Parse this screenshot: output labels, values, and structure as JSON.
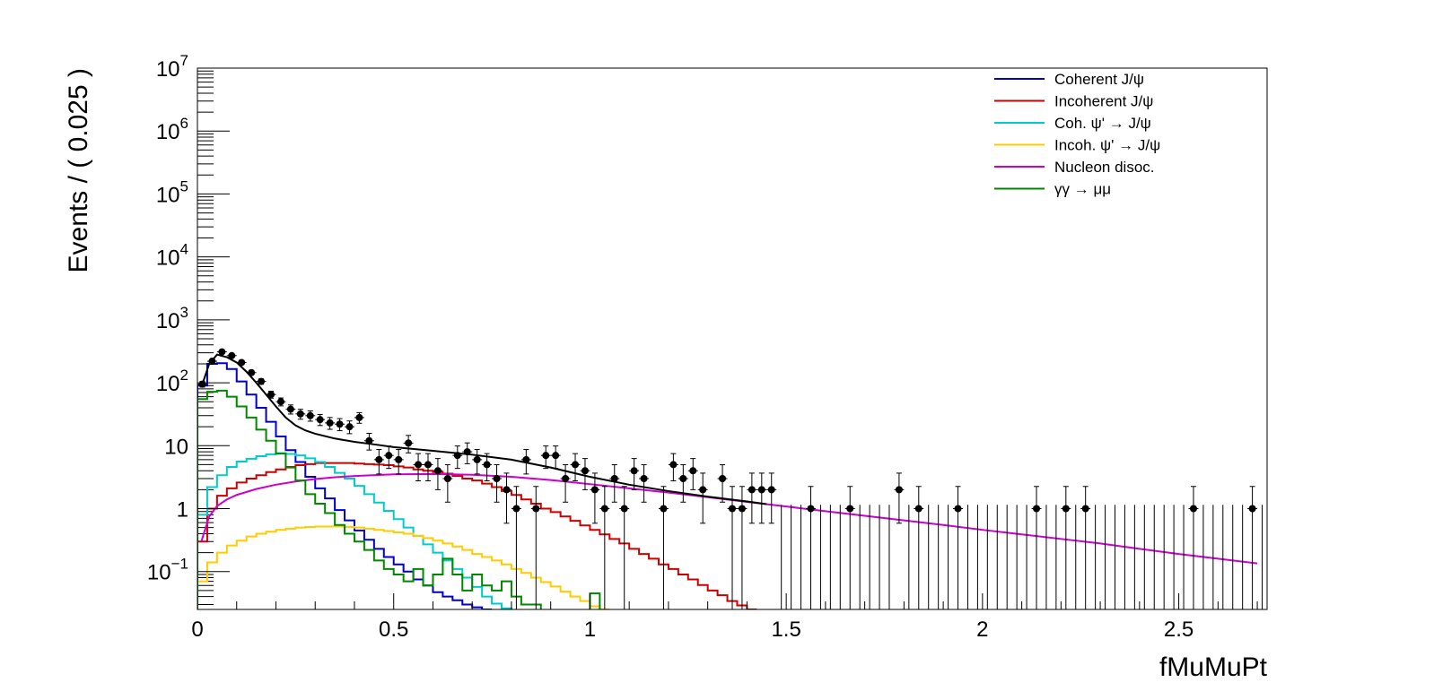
{
  "chart_data": {
    "type": "histogram",
    "xlabel": "fMuMuPt",
    "ylabel": "Events / ( 0.025 )",
    "x_range": [
      0,
      2.725
    ],
    "y_range": [
      0.025,
      10000000
    ],
    "y_scale": "log",
    "grid": false,
    "legend_position": "top-right",
    "x_ticks": [
      {
        "v": 0,
        "label": "0"
      },
      {
        "v": 0.5,
        "label": "0.5"
      },
      {
        "v": 1,
        "label": "1"
      },
      {
        "v": 1.5,
        "label": "1.5"
      },
      {
        "v": 2,
        "label": "2"
      },
      {
        "v": 2.5,
        "label": "2.5"
      }
    ],
    "y_ticks": [
      {
        "v": 0.1,
        "base": "10",
        "exp": "−1"
      },
      {
        "v": 1,
        "label": "1"
      },
      {
        "v": 10,
        "label": "10"
      },
      {
        "v": 100,
        "base": "10",
        "exp": "2"
      },
      {
        "v": 1000,
        "base": "10",
        "exp": "3"
      },
      {
        "v": 10000,
        "base": "10",
        "exp": "4"
      },
      {
        "v": 100000,
        "base": "10",
        "exp": "5"
      },
      {
        "v": 1000000,
        "base": "10",
        "exp": "6"
      },
      {
        "v": 10000000,
        "base": "10",
        "exp": "7"
      }
    ],
    "bin_width": 0.025,
    "data_points": [
      [
        0.0125,
        95
      ],
      [
        0.0375,
        220
      ],
      [
        0.0625,
        310
      ],
      [
        0.0875,
        270
      ],
      [
        0.1125,
        210
      ],
      [
        0.1375,
        145
      ],
      [
        0.1625,
        105
      ],
      [
        0.1875,
        65
      ],
      [
        0.2125,
        50
      ],
      [
        0.2375,
        38
      ],
      [
        0.2625,
        32
      ],
      [
        0.2875,
        30
      ],
      [
        0.3125,
        26
      ],
      [
        0.3375,
        23
      ],
      [
        0.3625,
        22
      ],
      [
        0.3875,
        20
      ],
      [
        0.4125,
        28
      ],
      [
        0.4375,
        12
      ],
      [
        0.4625,
        6
      ],
      [
        0.4875,
        7
      ],
      [
        0.5125,
        6
      ],
      [
        0.5375,
        11
      ],
      [
        0.5625,
        5
      ],
      [
        0.5875,
        5
      ],
      [
        0.6125,
        4
      ],
      [
        0.6375,
        3
      ],
      [
        0.6625,
        7
      ],
      [
        0.6875,
        8
      ],
      [
        0.7125,
        6
      ],
      [
        0.7375,
        5
      ],
      [
        0.7625,
        3
      ],
      [
        0.7875,
        2
      ],
      [
        0.8125,
        1
      ],
      [
        0.8375,
        6
      ],
      [
        0.8625,
        1
      ],
      [
        0.8875,
        7
      ],
      [
        0.9125,
        7
      ],
      [
        0.9375,
        3
      ],
      [
        0.9625,
        5
      ],
      [
        0.9875,
        4
      ],
      [
        1.0125,
        2
      ],
      [
        1.0375,
        1
      ],
      [
        1.0625,
        3
      ],
      [
        1.0875,
        1
      ],
      [
        1.1125,
        4
      ],
      [
        1.1375,
        3
      ],
      [
        1.1875,
        1
      ],
      [
        1.2125,
        5
      ],
      [
        1.2375,
        3
      ],
      [
        1.2625,
        4
      ],
      [
        1.2875,
        2
      ],
      [
        1.3375,
        3
      ],
      [
        1.3625,
        1
      ],
      [
        1.3875,
        1
      ],
      [
        1.4125,
        2
      ],
      [
        1.4375,
        2
      ],
      [
        1.4625,
        2
      ],
      [
        1.5625,
        1
      ],
      [
        1.6625,
        1
      ],
      [
        1.7875,
        2
      ],
      [
        1.8375,
        1
      ],
      [
        1.9375,
        1
      ],
      [
        2.1375,
        1
      ],
      [
        2.2125,
        1
      ],
      [
        2.2625,
        1
      ],
      [
        2.5375,
        1
      ],
      [
        2.6875,
        1
      ]
    ],
    "empty_bin_error_upper": 1.15,
    "series": [
      {
        "name": "Coherent J/ψ",
        "color": "#0000cc",
        "style": "step",
        "values": [
          90,
          200,
          205,
          165,
          105,
          65,
          40,
          24,
          14,
          8.5,
          5.5,
          3.2,
          2.1,
          1.45,
          0.95,
          0.65,
          0.45,
          0.32,
          0.23,
          0.17,
          0.13,
          0.1,
          0.075,
          0.06,
          0.047,
          0.04,
          0.035,
          0.03,
          0.027,
          0.025
        ]
      },
      {
        "name": "Incoherent J/ψ",
        "color": "#cc0000",
        "style": "step",
        "values": [
          0.3,
          1.0,
          1.6,
          2.1,
          2.6,
          3.0,
          3.4,
          3.8,
          4.2,
          4.6,
          4.9,
          5.1,
          5.3,
          5.3,
          5.3,
          5.3,
          5.2,
          5.1,
          5.0,
          4.9,
          4.7,
          4.5,
          4.2,
          4.0,
          3.8,
          3.6,
          3.3,
          3.0,
          2.8,
          2.5,
          2.2,
          1.9,
          1.65,
          1.4,
          1.2,
          1.0,
          0.88,
          0.75,
          0.64,
          0.54,
          0.46,
          0.39,
          0.33,
          0.28,
          0.23,
          0.19,
          0.16,
          0.13,
          0.11,
          0.09,
          0.075,
          0.061,
          0.05,
          0.042,
          0.034,
          0.029,
          0.025
        ]
      },
      {
        "name": "Coh. ψ' →  J/ψ",
        "color": "#00cccc",
        "style": "step",
        "values": [
          0.8,
          2.2,
          3.4,
          4.6,
          5.6,
          6.2,
          6.8,
          7.3,
          7.6,
          7.4,
          7.0,
          6.3,
          5.5,
          4.6,
          3.7,
          3.0,
          2.3,
          1.7,
          1.25,
          0.92,
          0.68,
          0.5,
          0.37,
          0.27,
          0.2,
          0.15,
          0.11,
          0.08,
          0.057,
          0.04,
          0.031,
          0.026
        ]
      },
      {
        "name": "Incoh. ψ' →  J/ψ",
        "color": "#ffcc00",
        "style": "step",
        "values": [
          0.07,
          0.14,
          0.2,
          0.26,
          0.31,
          0.36,
          0.4,
          0.43,
          0.46,
          0.48,
          0.5,
          0.51,
          0.52,
          0.52,
          0.52,
          0.51,
          0.5,
          0.48,
          0.46,
          0.44,
          0.42,
          0.4,
          0.37,
          0.34,
          0.31,
          0.28,
          0.25,
          0.22,
          0.19,
          0.17,
          0.15,
          0.13,
          0.11,
          0.095,
          0.08,
          0.068,
          0.058,
          0.048,
          0.04,
          0.034,
          0.028,
          0.025
        ]
      },
      {
        "name": "Nucleon disoc.",
        "color": "#cc00cc",
        "style": "curve",
        "points": [
          [
            0.01,
            0.3
          ],
          [
            0.03,
            0.75
          ],
          [
            0.05,
            1.1
          ],
          [
            0.075,
            1.4
          ],
          [
            0.1,
            1.65
          ],
          [
            0.15,
            2.05
          ],
          [
            0.2,
            2.4
          ],
          [
            0.25,
            2.7
          ],
          [
            0.3,
            2.95
          ],
          [
            0.35,
            3.15
          ],
          [
            0.4,
            3.3
          ],
          [
            0.5,
            3.5
          ],
          [
            0.6,
            3.55
          ],
          [
            0.7,
            3.45
          ],
          [
            0.8,
            3.2
          ],
          [
            0.9,
            2.85
          ],
          [
            1.0,
            2.45
          ],
          [
            1.1,
            2.1
          ],
          [
            1.2,
            1.8
          ],
          [
            1.3,
            1.52
          ],
          [
            1.4,
            1.28
          ],
          [
            1.5,
            1.08
          ],
          [
            1.6,
            0.91
          ],
          [
            1.7,
            0.77
          ],
          [
            1.8,
            0.65
          ],
          [
            1.9,
            0.55
          ],
          [
            2.0,
            0.46
          ],
          [
            2.1,
            0.39
          ],
          [
            2.2,
            0.33
          ],
          [
            2.3,
            0.28
          ],
          [
            2.4,
            0.23
          ],
          [
            2.5,
            0.19
          ],
          [
            2.6,
            0.16
          ],
          [
            2.7,
            0.135
          ]
        ]
      },
      {
        "name": "γγ → μμ",
        "color": "#008800",
        "style": "step",
        "values": [
          55,
          72,
          75,
          60,
          42,
          28,
          18,
          12,
          7.5,
          4.5,
          2.8,
          1.7,
          1.2,
          0.85,
          0.55,
          0.4,
          0.3,
          0.22,
          0.15,
          0.11,
          0.09,
          0.07,
          0.11,
          0.06,
          0.09,
          0.16,
          0.09,
          0.05,
          0.09,
          0.06,
          0.05,
          0.07,
          0.04,
          0.03,
          0.03,
          0.02,
          0.02,
          0.02,
          0.02,
          0.02,
          0.045,
          0.02
        ]
      },
      {
        "name": "",
        "color": "#000000",
        "style": "curve",
        "points": [
          [
            0.01,
            85
          ],
          [
            0.03,
            200
          ],
          [
            0.05,
            280
          ],
          [
            0.075,
            255
          ],
          [
            0.1,
            210
          ],
          [
            0.125,
            150
          ],
          [
            0.15,
            100
          ],
          [
            0.175,
            65
          ],
          [
            0.2,
            42
          ],
          [
            0.225,
            28
          ],
          [
            0.25,
            21
          ],
          [
            0.275,
            17.5
          ],
          [
            0.3,
            15.5
          ],
          [
            0.35,
            13
          ],
          [
            0.4,
            11.5
          ],
          [
            0.45,
            10.5
          ],
          [
            0.5,
            9.5
          ],
          [
            0.6,
            8.3
          ],
          [
            0.7,
            7.2
          ],
          [
            0.8,
            6.0
          ],
          [
            0.9,
            4.5
          ],
          [
            1.0,
            3.2
          ],
          [
            1.1,
            2.4
          ],
          [
            1.2,
            1.9
          ],
          [
            1.3,
            1.55
          ],
          [
            1.4,
            1.3
          ],
          [
            1.45,
            1.18
          ]
        ]
      }
    ]
  }
}
